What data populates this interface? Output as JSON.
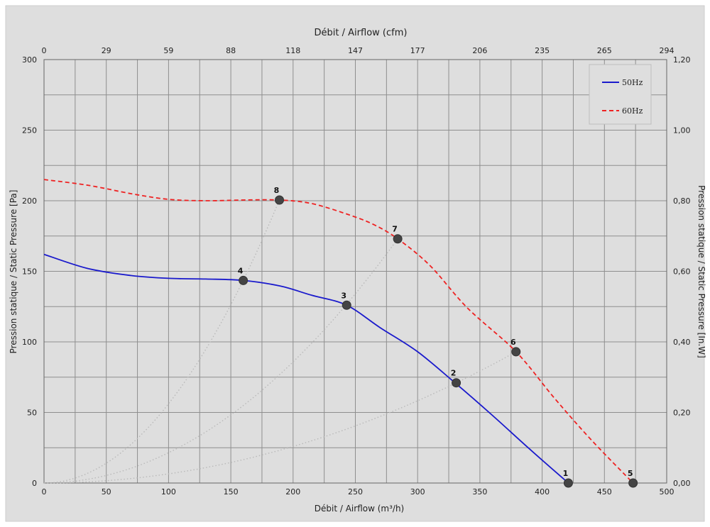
{
  "chart_data": {
    "type": "line",
    "x_bottom_label": "Débit / Airflow (m³/h)",
    "x_top_label": "Débit / Airflow (cfm)",
    "y_left_label": "Pression statique / Static Pressure [Pa]",
    "y_right_label": "Pression statique / Static Pressure [In.W]",
    "xlim": [
      0,
      500
    ],
    "ylim": [
      0,
      300
    ],
    "x_bottom_ticks": [
      "0",
      "50",
      "100",
      "150",
      "200",
      "250",
      "300",
      "350",
      "400",
      "450",
      "500"
    ],
    "x_top_ticks": [
      "0",
      "29",
      "59",
      "88",
      "118",
      "147",
      "177",
      "206",
      "235",
      "265",
      "294"
    ],
    "y_left_ticks": [
      "0",
      "50",
      "100",
      "150",
      "200",
      "250",
      "300"
    ],
    "y_right_ticks": [
      "0,00",
      "0,20",
      "0,40",
      "0,60",
      "0,80",
      "1,00",
      "1,20"
    ],
    "grid": true,
    "legend_position": "top-right",
    "series": [
      {
        "name": "50Hz",
        "color": "#1a1acc",
        "style": "solid",
        "x": [
          0,
          35,
          70,
          100,
          130,
          160,
          190,
          215,
          243,
          270,
          300,
          330,
          360,
          390,
          421
        ],
        "y": [
          162,
          152,
          147,
          145,
          144.5,
          143.5,
          139.5,
          133,
          126,
          110,
          93,
          71,
          48,
          24,
          0
        ]
      },
      {
        "name": "60Hz",
        "color": "#ee2222",
        "style": "dashed",
        "x": [
          0,
          35,
          70,
          100,
          130,
          160,
          189,
          215,
          245,
          265,
          284,
          310,
          340,
          379,
          410,
          440,
          473
        ],
        "y": [
          215,
          211,
          205,
          201,
          200,
          200.5,
          200.5,
          198,
          190,
          183,
          173,
          154,
          124,
          93,
          60,
          30,
          0
        ]
      }
    ],
    "points": [
      {
        "label": "1",
        "x": 421,
        "y": 0
      },
      {
        "label": "2",
        "x": 331,
        "y": 71
      },
      {
        "label": "3",
        "x": 243,
        "y": 126
      },
      {
        "label": "4",
        "x": 160,
        "y": 143.5
      },
      {
        "label": "5",
        "x": 473,
        "y": 0
      },
      {
        "label": "6",
        "x": 379,
        "y": 93
      },
      {
        "label": "7",
        "x": 284,
        "y": 173
      },
      {
        "label": "8",
        "x": 189,
        "y": 200.5
      }
    ],
    "system_curves": [
      {
        "x_end": 379,
        "y_end": 93
      },
      {
        "x_end": 284,
        "y_end": 173
      },
      {
        "x_end": 189,
        "y_end": 200.5
      }
    ]
  }
}
